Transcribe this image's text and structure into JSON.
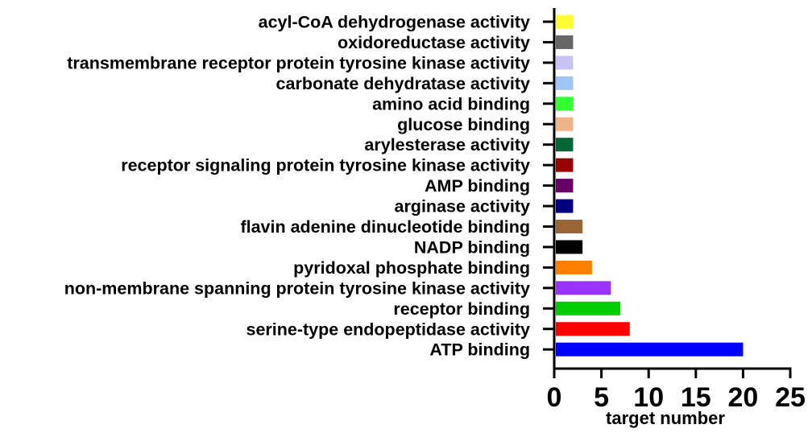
{
  "chart_data": {
    "type": "bar",
    "orientation": "horizontal",
    "title": "",
    "xlabel": "target number",
    "ylabel": "",
    "xlim": [
      0,
      25
    ],
    "xticks": [
      0,
      5,
      10,
      15,
      20,
      25
    ],
    "xtick_labels": [
      "0",
      "5",
      "10",
      "15",
      "20",
      "25"
    ],
    "grid": false,
    "legend": "none",
    "categories": [
      "acyl-CoA dehydrogenase activity",
      "oxidoreductase activity",
      "transmembrane receptor protein tyrosine kinase activity",
      "carbonate dehydratase activity",
      "amino acid binding",
      "glucose binding",
      "arylesterase activity",
      "receptor signaling protein tyrosine kinase activity",
      "AMP binding",
      "arginase activity",
      "flavin adenine dinucleotide binding",
      "NADP binding",
      "pyridoxal phosphate binding",
      "non-membrane spanning protein tyrosine kinase activity",
      "receptor binding",
      "serine-type endopeptidase activity",
      "ATP binding"
    ],
    "values": [
      2,
      2,
      2,
      2,
      2,
      2,
      2,
      2,
      2,
      2,
      3,
      3,
      4,
      6,
      7,
      8,
      20
    ],
    "colors": [
      "#ffff33",
      "#666666",
      "#c7c3f5",
      "#9ec6f5",
      "#33ff33",
      "#f0b48a",
      "#006633",
      "#990000",
      "#660066",
      "#00007f",
      "#996633",
      "#000000",
      "#ff8000",
      "#9933ff",
      "#00cc00",
      "#ff0000",
      "#0000ff"
    ]
  }
}
